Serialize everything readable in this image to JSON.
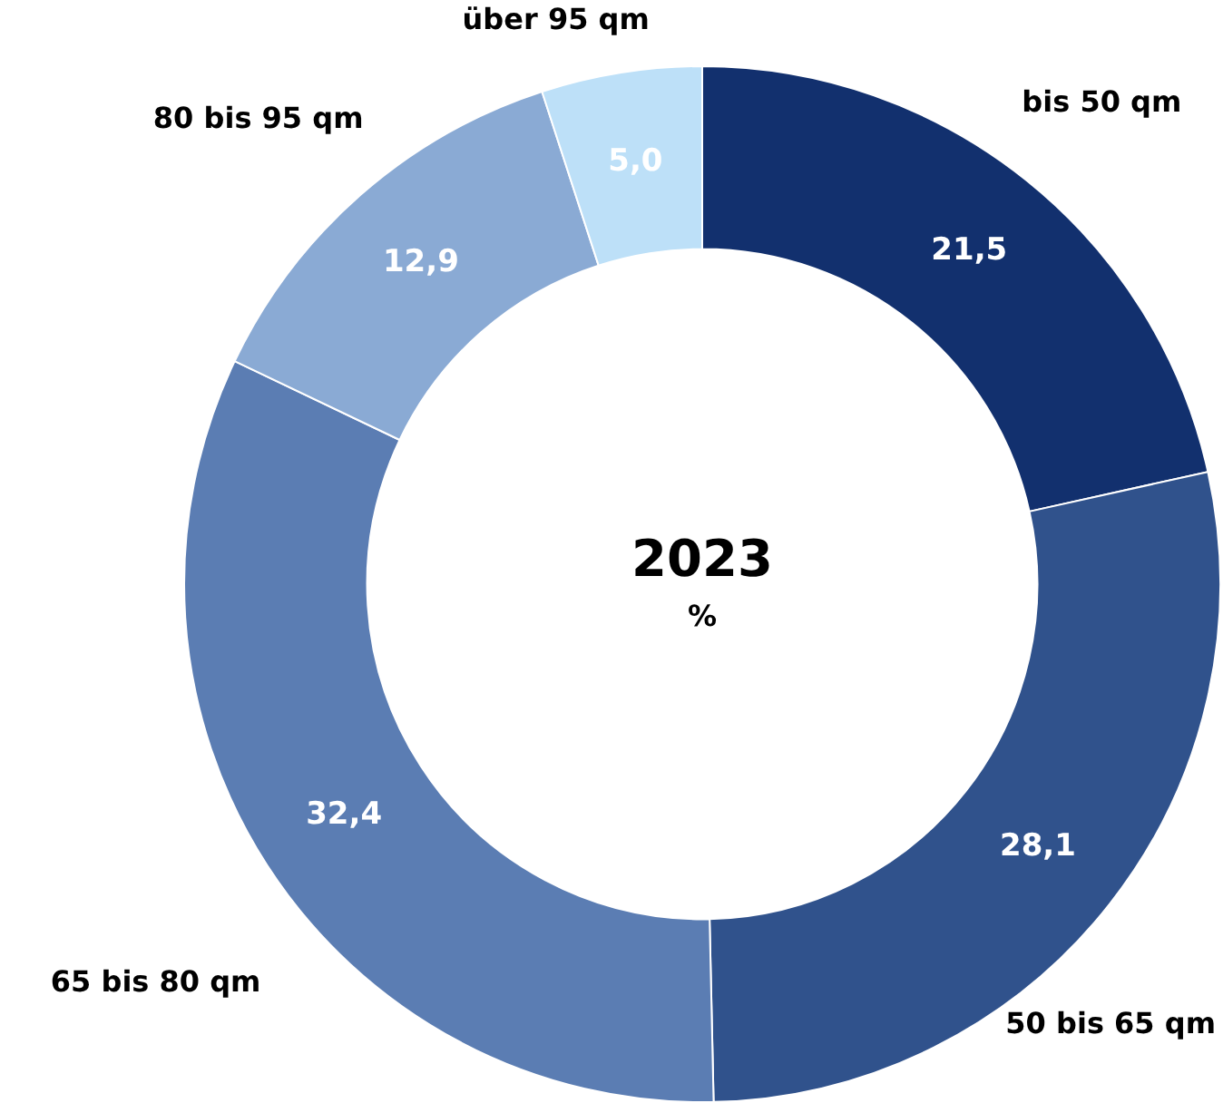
{
  "chart_data": {
    "type": "donut",
    "title": "2023",
    "subtitle": "%",
    "categories": [
      "bis 50 qm",
      "50 bis 65 qm",
      "65 bis 80 qm",
      "80 bis 95 qm",
      "über 95 qm"
    ],
    "values": [
      21.5,
      28.1,
      32.4,
      12.9,
      5.0
    ],
    "value_labels": [
      "21,5",
      "28,1",
      "32,4",
      "12,9",
      "5,0"
    ],
    "colors": [
      "#12306e",
      "#30528c",
      "#5b7db3",
      "#8aaad4",
      "#bde0f8"
    ],
    "legend": false
  }
}
